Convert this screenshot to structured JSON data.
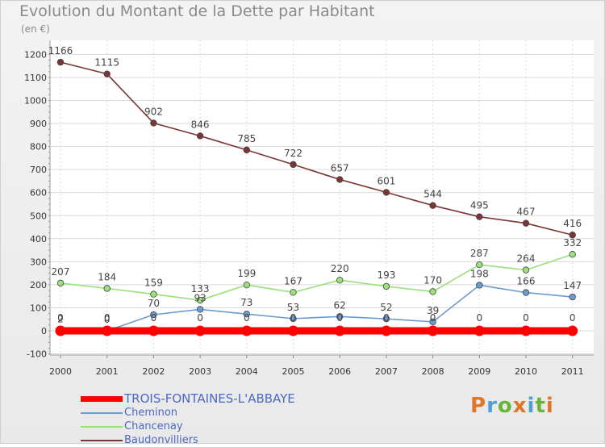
{
  "title": "Evolution du Montant de la Dette par Habitant",
  "unit": "(en €)",
  "brand": {
    "text": "Proxiti",
    "colors": [
      "#e0762a",
      "#4f9fd8",
      "#69b53a",
      "#e0762a",
      "#4f9fd8",
      "#69b53a",
      "#e0762a"
    ]
  },
  "chart_data": {
    "type": "line",
    "x": [
      "2000",
      "2001",
      "2002",
      "2003",
      "2004",
      "2005",
      "2006",
      "2007",
      "2008",
      "2009",
      "2010",
      "2011"
    ],
    "ylim": [
      -100,
      1200
    ],
    "yticks": [
      -100,
      0,
      100,
      200,
      300,
      400,
      500,
      600,
      700,
      800,
      900,
      1000,
      1100,
      1200
    ],
    "grid": true,
    "legend_position": "bottom-left",
    "series": [
      {
        "name": "TROIS-FONTAINES-L'ABBAYE",
        "color": "#ff0000",
        "values": [
          0,
          0,
          0,
          0,
          0,
          0,
          0,
          0,
          0,
          0,
          0,
          0
        ],
        "labels": [
          "0",
          "0",
          "0",
          "0",
          "0",
          "0",
          "0",
          "0",
          "0",
          "0",
          "0",
          "0"
        ]
      },
      {
        "name": "Cheminon",
        "color": "#6b9ccf",
        "values": [
          2,
          0,
          70,
          93,
          73,
          53,
          62,
          52,
          39,
          198,
          166,
          147
        ],
        "labels": [
          "2",
          "0",
          "70",
          "93",
          "73",
          "53",
          "62",
          "52",
          "39",
          "198",
          "166",
          "147"
        ]
      },
      {
        "name": "Chancenay",
        "color": "#9be07b",
        "values": [
          207,
          184,
          159,
          133,
          199,
          167,
          220,
          193,
          170,
          287,
          264,
          332
        ],
        "labels": [
          "207",
          "184",
          "159",
          "133",
          "199",
          "167",
          "220",
          "193",
          "170",
          "287",
          "264",
          "332"
        ]
      },
      {
        "name": "Baudonvilliers",
        "color": "#7a3535",
        "values": [
          1166,
          1115,
          902,
          846,
          785,
          722,
          657,
          601,
          544,
          495,
          467,
          416
        ],
        "labels": [
          "1166",
          "1115",
          "902",
          "846",
          "785",
          "722",
          "657",
          "601",
          "544",
          "495",
          "467",
          "416"
        ]
      }
    ]
  }
}
